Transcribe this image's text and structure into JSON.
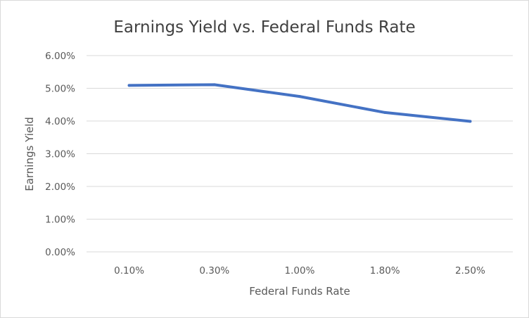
{
  "chart_data": {
    "type": "line",
    "title": "Earnings Yield vs. Federal Funds Rate",
    "xlabel": "Federal Funds Rate",
    "ylabel": "Earnings Yield",
    "categories": [
      "0.10%",
      "0.30%",
      "1.00%",
      "1.80%",
      "2.50%"
    ],
    "series": [
      {
        "values": [
          5.09,
          5.11,
          4.75,
          4.26,
          3.99
        ],
        "color": "#4472c4"
      }
    ],
    "ylim": [
      0,
      6
    ],
    "yticks": [
      "0.00%",
      "1.00%",
      "2.00%",
      "3.00%",
      "4.00%",
      "5.00%",
      "6.00%"
    ],
    "grid": true,
    "legend": "none"
  }
}
